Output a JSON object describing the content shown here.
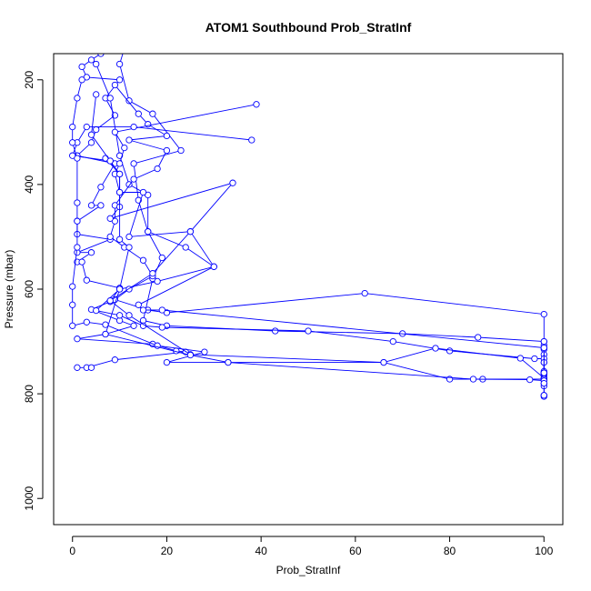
{
  "chart_data": {
    "type": "line",
    "title": "ATOM1 Southbound Prob_StratInf",
    "xlabel": "Prob_StratInf",
    "ylabel": "Pressure (mbar)",
    "xlim": [
      -4,
      104
    ],
    "ylim": [
      1050,
      150
    ],
    "y_reversed": true,
    "grid": false,
    "x_ticks": [
      0,
      20,
      40,
      60,
      80,
      100
    ],
    "y_ticks": [
      200,
      400,
      600,
      800,
      1000
    ],
    "series": [
      {
        "color": "#0000ff",
        "marker": "open-circle",
        "points": [
          [
            6,
            150
          ],
          [
            4,
            162
          ],
          [
            2,
            175
          ],
          [
            3,
            195
          ],
          [
            10,
            200
          ],
          [
            7,
            235
          ],
          [
            9,
            268
          ],
          [
            5,
            295
          ],
          [
            4,
            320
          ],
          [
            1,
            345
          ],
          [
            9,
            360
          ],
          [
            6,
            405
          ],
          [
            4,
            440
          ],
          [
            6,
            440
          ],
          [
            1,
            470
          ],
          [
            1,
            495
          ],
          [
            8,
            505
          ],
          [
            1,
            530
          ],
          [
            4,
            530
          ],
          [
            1,
            548
          ],
          [
            2,
            548
          ],
          [
            3,
            583
          ],
          [
            10,
            598
          ],
          [
            8,
            624
          ],
          [
            4,
            639
          ],
          [
            10,
            660
          ],
          [
            13,
            670
          ],
          [
            7,
            686
          ],
          [
            1,
            695
          ],
          [
            17,
            705
          ],
          [
            22,
            718
          ],
          [
            24,
            720
          ],
          [
            9,
            735
          ],
          [
            3,
            750
          ],
          [
            1,
            750
          ],
          [
            4,
            750
          ]
        ]
      },
      {
        "color": "#0000ff",
        "marker": "open-circle",
        "points": [
          [
            5,
            170
          ],
          [
            8,
            235
          ],
          [
            10,
            345
          ],
          [
            12,
            400
          ],
          [
            16,
            420
          ],
          [
            16,
            490
          ],
          [
            19,
            540
          ],
          [
            17,
            580
          ],
          [
            15,
            660
          ],
          [
            20,
            670
          ],
          [
            43,
            680
          ],
          [
            70,
            685
          ],
          [
            86,
            692
          ],
          [
            100,
            700
          ],
          [
            100,
            707
          ],
          [
            100,
            715
          ],
          [
            100,
            725
          ],
          [
            100,
            740
          ],
          [
            100,
            760
          ],
          [
            100,
            765
          ],
          [
            100,
            772
          ],
          [
            100,
            785
          ],
          [
            100,
            803
          ],
          [
            100,
            805
          ]
        ]
      },
      {
        "color": "#0000ff",
        "marker": "open-circle",
        "points": [
          [
            11,
            140
          ],
          [
            10,
            170
          ],
          [
            12,
            240
          ],
          [
            17,
            265
          ],
          [
            23,
            335
          ],
          [
            13,
            360
          ],
          [
            14,
            430
          ],
          [
            16,
            490
          ],
          [
            24,
            520
          ],
          [
            30,
            557
          ],
          [
            18,
            585
          ],
          [
            10,
            600
          ],
          [
            5,
            641
          ],
          [
            10,
            650
          ],
          [
            15,
            670
          ],
          [
            19,
            673
          ],
          [
            50,
            680
          ],
          [
            68,
            700
          ],
          [
            80,
            718
          ],
          [
            98,
            733
          ],
          [
            100,
            733
          ],
          [
            100,
            740
          ],
          [
            100,
            757
          ],
          [
            100,
            763
          ],
          [
            100,
            770
          ],
          [
            100,
            780
          ],
          [
            100,
            803
          ]
        ]
      },
      {
        "color": "#0000ff",
        "marker": "open-circle",
        "points": [
          [
            9,
            210
          ],
          [
            14,
            265
          ],
          [
            16,
            285
          ],
          [
            20,
            307
          ],
          [
            12,
            315
          ],
          [
            20,
            335
          ],
          [
            18,
            370
          ],
          [
            13,
            390
          ],
          [
            9,
            440
          ],
          [
            9,
            470
          ],
          [
            8,
            500
          ],
          [
            11,
            520
          ],
          [
            15,
            545
          ],
          [
            17,
            575
          ],
          [
            12,
            600
          ],
          [
            9,
            620
          ],
          [
            16,
            640
          ],
          [
            20,
            645
          ],
          [
            62,
            608
          ],
          [
            100,
            648
          ],
          [
            100,
            700
          ],
          [
            100,
            712
          ],
          [
            100,
            760
          ],
          [
            100,
            772
          ]
        ]
      },
      {
        "color": "#0000ff",
        "marker": "open-circle",
        "points": [
          [
            39,
            247
          ],
          [
            9,
            300
          ],
          [
            11,
            330
          ],
          [
            10,
            360
          ],
          [
            9,
            380
          ],
          [
            10,
            415
          ],
          [
            15,
            415
          ],
          [
            12,
            500
          ],
          [
            25,
            490
          ],
          [
            17,
            570
          ],
          [
            8,
            622
          ],
          [
            12,
            650
          ],
          [
            25,
            725
          ],
          [
            66,
            740
          ],
          [
            77,
            713
          ],
          [
            95,
            732
          ],
          [
            100,
            770
          ]
        ]
      },
      {
        "color": "#0000ff",
        "marker": "open-circle",
        "points": [
          [
            38,
            315
          ],
          [
            13,
            290
          ],
          [
            3,
            290
          ],
          [
            1,
            320
          ],
          [
            0,
            345
          ],
          [
            8,
            355
          ],
          [
            7,
            350
          ],
          [
            10,
            380
          ],
          [
            10,
            443
          ],
          [
            8,
            465
          ],
          [
            34,
            397
          ],
          [
            25,
            490
          ],
          [
            30,
            557
          ],
          [
            14,
            630
          ],
          [
            15,
            640
          ],
          [
            19,
            640
          ],
          [
            100,
            712
          ],
          [
            100,
            760
          ]
        ]
      },
      {
        "color": "#0000ff",
        "marker": "open-circle",
        "points": [
          [
            2,
            200
          ],
          [
            1,
            235
          ],
          [
            0,
            290
          ],
          [
            0,
            320
          ],
          [
            1,
            350
          ],
          [
            1,
            435
          ],
          [
            1,
            470
          ],
          [
            1,
            520
          ],
          [
            0,
            595
          ],
          [
            0,
            630
          ],
          [
            0,
            670
          ],
          [
            3,
            663
          ],
          [
            7,
            668
          ],
          [
            18,
            708
          ],
          [
            28,
            720
          ],
          [
            20,
            740
          ],
          [
            33,
            740
          ],
          [
            66,
            740
          ],
          [
            80,
            772
          ],
          [
            87,
            772
          ],
          [
            100,
            772
          ],
          [
            100,
            760
          ]
        ]
      },
      {
        "color": "#0000ff",
        "marker": "open-circle",
        "points": [
          [
            5,
            228
          ],
          [
            4,
            305
          ],
          [
            8,
            355
          ],
          [
            10,
            380
          ],
          [
            10,
            415
          ],
          [
            10,
            505
          ],
          [
            12,
            520
          ],
          [
            10,
            600
          ],
          [
            7,
            686
          ],
          [
            25,
            726
          ],
          [
            33,
            740
          ],
          [
            85,
            772
          ],
          [
            97,
            773
          ],
          [
            100,
            775
          ],
          [
            100,
            780
          ]
        ]
      }
    ]
  }
}
